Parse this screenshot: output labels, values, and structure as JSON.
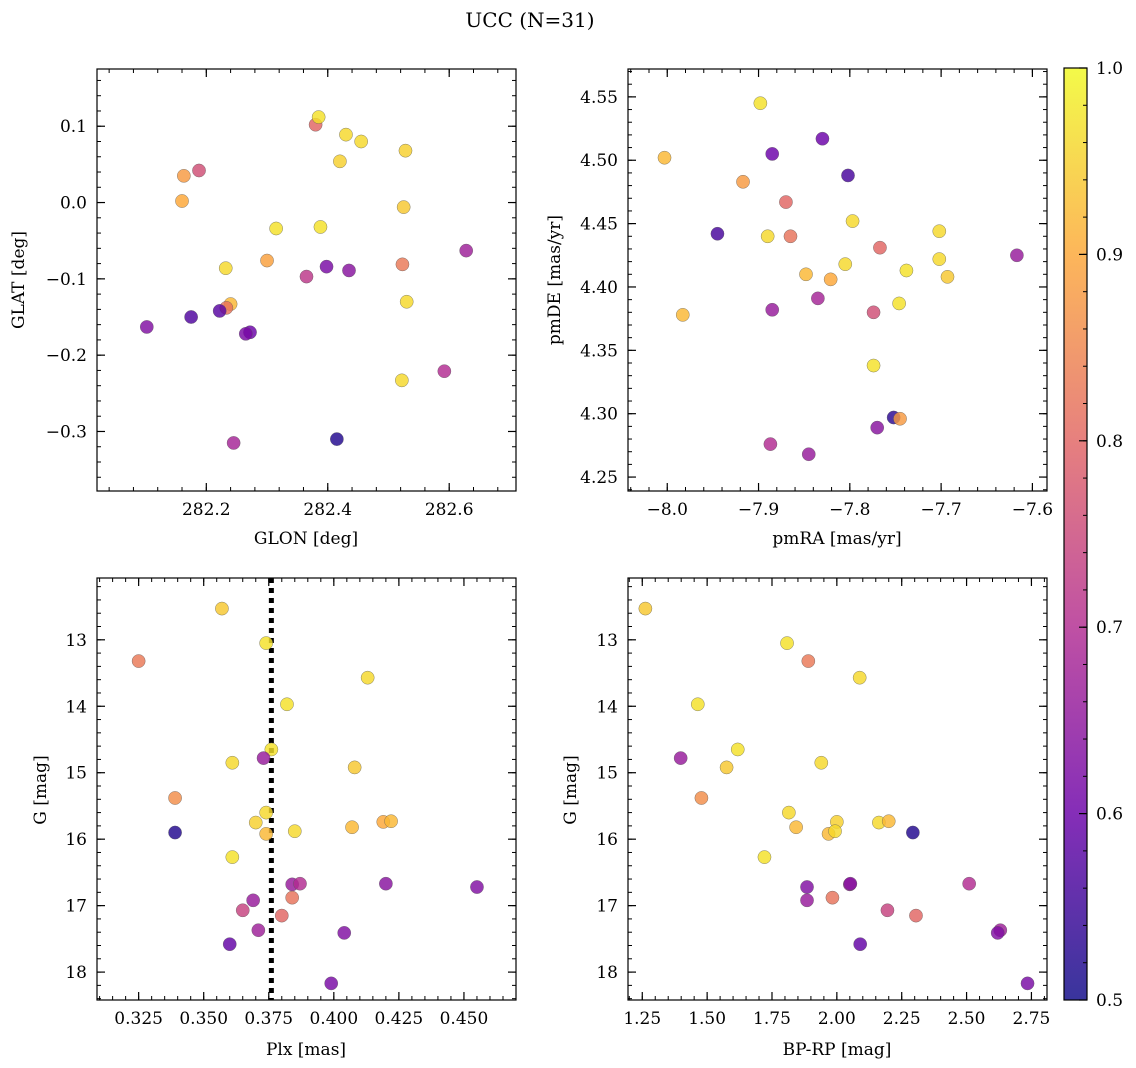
{
  "figure": {
    "title": "UCC (N=31)"
  },
  "colorbar": {
    "range": [
      0.5,
      1.0
    ],
    "ticks": [
      0.5,
      0.6,
      0.7,
      0.8,
      0.9,
      1.0
    ],
    "tick_labels": [
      "0.5",
      "0.6",
      "0.7",
      "0.8",
      "0.9",
      "1.0"
    ],
    "colormap": "plasma",
    "stops": [
      "#0d0887",
      "#6a00a8",
      "#b12a90",
      "#e16462",
      "#fca636",
      "#f0f921"
    ]
  },
  "chart_data": [
    {
      "type": "scatter",
      "xlabel": "GLON [deg]",
      "ylabel": "GLAT [deg]",
      "xlim": [
        282.02,
        282.71
      ],
      "ylim": [
        -0.378,
        0.175
      ],
      "xticks": [
        282.2,
        282.4,
        282.6
      ],
      "xtick_labels": [
        "282.2",
        "282.4",
        "282.6"
      ],
      "yticks": [
        -0.3,
        -0.2,
        -0.1,
        0.0,
        0.1
      ],
      "ytick_labels": [
        "−0.3",
        "−0.2",
        "−0.1",
        "0.0",
        "0.1"
      ],
      "points": [
        {
          "x": 282.38,
          "y": 0.102,
          "c": 0.8
        },
        {
          "x": 282.385,
          "y": 0.112,
          "c": 0.97
        },
        {
          "x": 282.43,
          "y": 0.089,
          "c": 0.96
        },
        {
          "x": 282.455,
          "y": 0.08,
          "c": 0.96
        },
        {
          "x": 282.528,
          "y": 0.068,
          "c": 0.95
        },
        {
          "x": 282.42,
          "y": 0.054,
          "c": 0.95
        },
        {
          "x": 282.188,
          "y": 0.042,
          "c": 0.76
        },
        {
          "x": 282.163,
          "y": 0.035,
          "c": 0.88
        },
        {
          "x": 282.16,
          "y": 0.002,
          "c": 0.9
        },
        {
          "x": 282.525,
          "y": -0.006,
          "c": 0.94
        },
        {
          "x": 282.315,
          "y": -0.034,
          "c": 0.97
        },
        {
          "x": 282.388,
          "y": -0.032,
          "c": 0.97
        },
        {
          "x": 282.232,
          "y": -0.086,
          "c": 0.96
        },
        {
          "x": 282.3,
          "y": -0.076,
          "c": 0.89
        },
        {
          "x": 282.398,
          "y": -0.084,
          "c": 0.62
        },
        {
          "x": 282.435,
          "y": -0.089,
          "c": 0.64
        },
        {
          "x": 282.365,
          "y": -0.097,
          "c": 0.72
        },
        {
          "x": 282.523,
          "y": -0.081,
          "c": 0.83
        },
        {
          "x": 282.628,
          "y": -0.063,
          "c": 0.67
        },
        {
          "x": 282.53,
          "y": -0.13,
          "c": 0.96
        },
        {
          "x": 282.24,
          "y": -0.133,
          "c": 0.92
        },
        {
          "x": 282.233,
          "y": -0.138,
          "c": 0.82
        },
        {
          "x": 282.222,
          "y": -0.142,
          "c": 0.58
        },
        {
          "x": 282.175,
          "y": -0.15,
          "c": 0.57
        },
        {
          "x": 282.102,
          "y": -0.163,
          "c": 0.63
        },
        {
          "x": 282.272,
          "y": -0.17,
          "c": 0.6
        },
        {
          "x": 282.265,
          "y": -0.172,
          "c": 0.62
        },
        {
          "x": 282.592,
          "y": -0.221,
          "c": 0.7
        },
        {
          "x": 282.522,
          "y": -0.233,
          "c": 0.96
        },
        {
          "x": 282.245,
          "y": -0.315,
          "c": 0.68
        },
        {
          "x": 282.415,
          "y": -0.31,
          "c": 0.52
        }
      ]
    },
    {
      "type": "scatter",
      "xlabel": "pmRA [mas/yr]",
      "ylabel": "pmDE [mas/yr]",
      "xlim": [
        -8.043,
        -7.584
      ],
      "ylim": [
        4.239,
        4.572
      ],
      "xticks": [
        -8.0,
        -7.9,
        -7.8,
        -7.7,
        -7.6
      ],
      "xtick_labels": [
        "−8.0",
        "−7.9",
        "−7.8",
        "−7.7",
        "−7.6"
      ],
      "yticks": [
        4.25,
        4.3,
        4.35,
        4.4,
        4.45,
        4.5,
        4.55
      ],
      "ytick_labels": [
        "4.25",
        "4.30",
        "4.35",
        "4.40",
        "4.45",
        "4.50",
        "4.55"
      ],
      "points": [
        {
          "x": -7.898,
          "y": 4.545,
          "c": 0.97
        },
        {
          "x": -8.003,
          "y": 4.502,
          "c": 0.92
        },
        {
          "x": -7.885,
          "y": 4.505,
          "c": 0.6
        },
        {
          "x": -7.83,
          "y": 4.517,
          "c": 0.6
        },
        {
          "x": -7.802,
          "y": 4.488,
          "c": 0.56
        },
        {
          "x": -7.917,
          "y": 4.483,
          "c": 0.88
        },
        {
          "x": -7.87,
          "y": 4.467,
          "c": 0.8
        },
        {
          "x": -7.797,
          "y": 4.452,
          "c": 0.96
        },
        {
          "x": -7.945,
          "y": 4.442,
          "c": 0.56
        },
        {
          "x": -7.89,
          "y": 4.44,
          "c": 0.96
        },
        {
          "x": -7.865,
          "y": 4.44,
          "c": 0.82
        },
        {
          "x": -7.702,
          "y": 4.444,
          "c": 0.96
        },
        {
          "x": -7.767,
          "y": 4.431,
          "c": 0.8
        },
        {
          "x": -7.617,
          "y": 4.425,
          "c": 0.66
        },
        {
          "x": -7.702,
          "y": 4.422,
          "c": 0.96
        },
        {
          "x": -7.805,
          "y": 4.418,
          "c": 0.96
        },
        {
          "x": -7.738,
          "y": 4.413,
          "c": 0.97
        },
        {
          "x": -7.848,
          "y": 4.41,
          "c": 0.92
        },
        {
          "x": -7.693,
          "y": 4.408,
          "c": 0.94
        },
        {
          "x": -7.821,
          "y": 4.406,
          "c": 0.9
        },
        {
          "x": -7.835,
          "y": 4.391,
          "c": 0.68
        },
        {
          "x": -7.746,
          "y": 4.387,
          "c": 0.97
        },
        {
          "x": -7.885,
          "y": 4.382,
          "c": 0.66
        },
        {
          "x": -7.774,
          "y": 4.38,
          "c": 0.76
        },
        {
          "x": -7.983,
          "y": 4.378,
          "c": 0.92
        },
        {
          "x": -7.774,
          "y": 4.338,
          "c": 0.97
        },
        {
          "x": -7.752,
          "y": 4.297,
          "c": 0.53
        },
        {
          "x": -7.745,
          "y": 4.296,
          "c": 0.88
        },
        {
          "x": -7.77,
          "y": 4.289,
          "c": 0.64
        },
        {
          "x": -7.887,
          "y": 4.276,
          "c": 0.7
        },
        {
          "x": -7.845,
          "y": 4.268,
          "c": 0.66
        }
      ]
    },
    {
      "type": "scatter",
      "xlabel": "Plx [mas]",
      "ylabel": "G [mag]",
      "xlim": [
        0.309,
        0.47
      ],
      "ylim": [
        18.42,
        12.07
      ],
      "y_inverted": true,
      "xticks": [
        0.325,
        0.35,
        0.375,
        0.4,
        0.425,
        0.45
      ],
      "xtick_labels": [
        "0.325",
        "0.350",
        "0.375",
        "0.400",
        "0.425",
        "0.450"
      ],
      "yticks": [
        13,
        14,
        15,
        16,
        17,
        18
      ],
      "ytick_labels": [
        "13",
        "14",
        "15",
        "16",
        "17",
        "18"
      ],
      "reference_line": {
        "x": 0.376,
        "style": "dotted"
      },
      "points": [
        {
          "x": 0.357,
          "y": 12.53,
          "c": 0.94
        },
        {
          "x": 0.325,
          "y": 13.32,
          "c": 0.83
        },
        {
          "x": 0.374,
          "y": 13.05,
          "c": 0.97
        },
        {
          "x": 0.413,
          "y": 13.57,
          "c": 0.96
        },
        {
          "x": 0.382,
          "y": 13.97,
          "c": 0.97
        },
        {
          "x": 0.376,
          "y": 14.65,
          "c": 0.97
        },
        {
          "x": 0.361,
          "y": 14.85,
          "c": 0.96
        },
        {
          "x": 0.373,
          "y": 14.78,
          "c": 0.66
        },
        {
          "x": 0.408,
          "y": 14.92,
          "c": 0.94
        },
        {
          "x": 0.339,
          "y": 15.38,
          "c": 0.86
        },
        {
          "x": 0.374,
          "y": 15.6,
          "c": 0.96
        },
        {
          "x": 0.37,
          "y": 15.75,
          "c": 0.95
        },
        {
          "x": 0.374,
          "y": 15.92,
          "c": 0.92
        },
        {
          "x": 0.339,
          "y": 15.9,
          "c": 0.52
        },
        {
          "x": 0.385,
          "y": 15.88,
          "c": 0.96
        },
        {
          "x": 0.407,
          "y": 15.82,
          "c": 0.92
        },
        {
          "x": 0.419,
          "y": 15.74,
          "c": 0.9
        },
        {
          "x": 0.422,
          "y": 15.73,
          "c": 0.92
        },
        {
          "x": 0.361,
          "y": 16.27,
          "c": 0.97
        },
        {
          "x": 0.384,
          "y": 16.68,
          "c": 0.66
        },
        {
          "x": 0.387,
          "y": 16.67,
          "c": 0.7
        },
        {
          "x": 0.42,
          "y": 16.67,
          "c": 0.64
        },
        {
          "x": 0.455,
          "y": 16.72,
          "c": 0.63
        },
        {
          "x": 0.384,
          "y": 16.88,
          "c": 0.82
        },
        {
          "x": 0.369,
          "y": 16.92,
          "c": 0.66
        },
        {
          "x": 0.365,
          "y": 17.07,
          "c": 0.74
        },
        {
          "x": 0.38,
          "y": 17.15,
          "c": 0.8
        },
        {
          "x": 0.371,
          "y": 17.37,
          "c": 0.67
        },
        {
          "x": 0.404,
          "y": 17.41,
          "c": 0.63
        },
        {
          "x": 0.36,
          "y": 17.58,
          "c": 0.59
        },
        {
          "x": 0.399,
          "y": 18.17,
          "c": 0.62
        }
      ]
    },
    {
      "type": "scatter",
      "xlabel": "BP-RP [mag]",
      "ylabel": "G [mag]",
      "xlim": [
        1.195,
        2.81
      ],
      "ylim": [
        18.42,
        12.07
      ],
      "y_inverted": true,
      "xticks": [
        1.25,
        1.5,
        1.75,
        2.0,
        2.25,
        2.5,
        2.75
      ],
      "xtick_labels": [
        "1.25",
        "1.50",
        "1.75",
        "2.00",
        "2.25",
        "2.50",
        "2.75"
      ],
      "yticks": [
        13,
        14,
        15,
        16,
        17,
        18
      ],
      "ytick_labels": [
        "13",
        "14",
        "15",
        "16",
        "17",
        "18"
      ],
      "points": [
        {
          "x": 1.262,
          "y": 12.53,
          "c": 0.94
        },
        {
          "x": 1.808,
          "y": 13.05,
          "c": 0.97
        },
        {
          "x": 1.89,
          "y": 13.32,
          "c": 0.83
        },
        {
          "x": 2.088,
          "y": 13.57,
          "c": 0.96
        },
        {
          "x": 1.464,
          "y": 13.97,
          "c": 0.97
        },
        {
          "x": 1.618,
          "y": 14.65,
          "c": 0.97
        },
        {
          "x": 1.398,
          "y": 14.78,
          "c": 0.66
        },
        {
          "x": 1.575,
          "y": 14.92,
          "c": 0.94
        },
        {
          "x": 1.94,
          "y": 14.85,
          "c": 0.96
        },
        {
          "x": 1.478,
          "y": 15.38,
          "c": 0.86
        },
        {
          "x": 1.815,
          "y": 15.6,
          "c": 0.96
        },
        {
          "x": 1.843,
          "y": 15.82,
          "c": 0.92
        },
        {
          "x": 2.0,
          "y": 15.74,
          "c": 0.95
        },
        {
          "x": 2.162,
          "y": 15.75,
          "c": 0.96
        },
        {
          "x": 2.2,
          "y": 15.73,
          "c": 0.92
        },
        {
          "x": 1.968,
          "y": 15.92,
          "c": 0.92
        },
        {
          "x": 1.993,
          "y": 15.88,
          "c": 0.96
        },
        {
          "x": 2.293,
          "y": 15.9,
          "c": 0.52
        },
        {
          "x": 1.721,
          "y": 16.27,
          "c": 0.97
        },
        {
          "x": 2.05,
          "y": 16.68,
          "c": 0.66
        },
        {
          "x": 2.052,
          "y": 16.67,
          "c": 0.64
        },
        {
          "x": 2.51,
          "y": 16.67,
          "c": 0.7
        },
        {
          "x": 1.885,
          "y": 16.72,
          "c": 0.63
        },
        {
          "x": 1.983,
          "y": 16.88,
          "c": 0.82
        },
        {
          "x": 1.885,
          "y": 16.92,
          "c": 0.66
        },
        {
          "x": 2.195,
          "y": 17.07,
          "c": 0.74
        },
        {
          "x": 2.305,
          "y": 17.15,
          "c": 0.8
        },
        {
          "x": 2.63,
          "y": 17.37,
          "c": 0.67
        },
        {
          "x": 2.62,
          "y": 17.41,
          "c": 0.63
        },
        {
          "x": 2.09,
          "y": 17.58,
          "c": 0.59
        },
        {
          "x": 2.735,
          "y": 18.17,
          "c": 0.62
        }
      ]
    }
  ]
}
